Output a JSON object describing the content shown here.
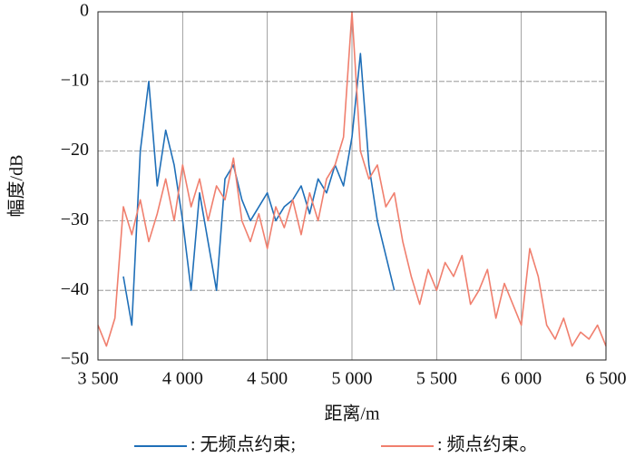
{
  "chart_data": {
    "type": "line",
    "xlabel": "距离/m",
    "ylabel": "幅度/dB",
    "x": [
      3500,
      3550,
      3600,
      3650,
      3700,
      3750,
      3800,
      3850,
      3900,
      3950,
      4000,
      4050,
      4100,
      4150,
      4200,
      4250,
      4300,
      4350,
      4400,
      4450,
      4500,
      4550,
      4600,
      4650,
      4700,
      4750,
      4800,
      4850,
      4900,
      4950,
      5000,
      5050,
      5100,
      5150,
      5200,
      5250,
      5300,
      5350,
      5400,
      5450,
      5500,
      5550,
      5600,
      5650,
      5700,
      5750,
      5800,
      5850,
      5900,
      5950,
      6000,
      6050,
      6100,
      6150,
      6200,
      6250,
      6300,
      6350,
      6400,
      6450,
      6500
    ],
    "series": [
      {
        "name": ": 无频点约束;",
        "color": "#1f6fb8",
        "values": [
          null,
          null,
          null,
          -38,
          -45,
          -20,
          -10,
          -25,
          -17,
          -22,
          -30,
          -40,
          -26,
          -33,
          -40,
          -24,
          -22,
          -27,
          -30,
          -28,
          -26,
          -30,
          -28,
          -27,
          -25,
          -29,
          -24,
          -26,
          -22,
          -25,
          -18,
          -6,
          -22,
          -30,
          -35,
          -40,
          null,
          null,
          null,
          null,
          null,
          null,
          null,
          null,
          null,
          null,
          null,
          null,
          null,
          null,
          null,
          null,
          null,
          null,
          null,
          null,
          null,
          null,
          null,
          null,
          null
        ]
      },
      {
        "name": ": 频点约束。",
        "color": "#f07f6e",
        "values": [
          -45,
          -48,
          -44,
          -28,
          -32,
          -27,
          -33,
          -29,
          -24,
          -30,
          -22,
          -28,
          -24,
          -30,
          -25,
          -27,
          -21,
          -30,
          -33,
          -29,
          -34,
          -28,
          -31,
          -27,
          -32,
          -26,
          -30,
          -24,
          -22,
          -18,
          0,
          -20,
          -24,
          -22,
          -28,
          -26,
          -33,
          -38,
          -42,
          -37,
          -40,
          -36,
          -38,
          -35,
          -42,
          -40,
          -37,
          -44,
          -39,
          -42,
          -45,
          -34,
          -38,
          -45,
          -47,
          -44,
          -48,
          -46,
          -47,
          -45,
          -48
        ]
      }
    ],
    "xlim": [
      3500,
      6500
    ],
    "xticks": [
      {
        "value": 3500,
        "label": "3 500"
      },
      {
        "value": 4000,
        "label": "4 000"
      },
      {
        "value": 4500,
        "label": "4 500"
      },
      {
        "value": 5000,
        "label": "5 000"
      },
      {
        "value": 5500,
        "label": "5 500"
      },
      {
        "value": 6000,
        "label": "6 000"
      },
      {
        "value": 6500,
        "label": "6 500"
      }
    ],
    "ylim": [
      -50,
      0
    ],
    "yticks": [
      {
        "value": -50,
        "label": "−50"
      },
      {
        "value": -40,
        "label": "−40"
      },
      {
        "value": -30,
        "label": "−30"
      },
      {
        "value": -20,
        "label": "−20"
      },
      {
        "value": -10,
        "label": "−10"
      },
      0
    ],
    "grid": true
  }
}
